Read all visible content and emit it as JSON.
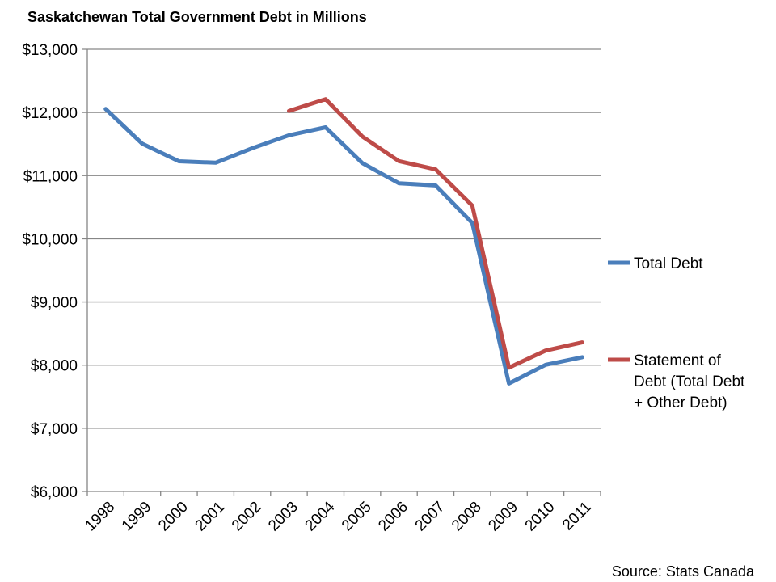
{
  "chart_data": {
    "type": "line",
    "title": "Saskatchewan Total Government Debt in Millions",
    "source": "Source: Stats Canada",
    "xlabel": "",
    "ylabel": "",
    "ylim": [
      6000,
      13000
    ],
    "y_ticks": [
      6000,
      7000,
      8000,
      9000,
      10000,
      11000,
      12000,
      13000
    ],
    "y_tick_labels": [
      "$6,000",
      "$7,000",
      "$8,000",
      "$9,000",
      "$10,000",
      "$11,000",
      "$12,000",
      "$13,000"
    ],
    "categories": [
      "1998",
      "1999",
      "2000",
      "2001",
      "2002",
      "2003",
      "2004",
      "2005",
      "2006",
      "2007",
      "2008",
      "2009",
      "2010",
      "2011"
    ],
    "grid": "horizontal",
    "legend_position": "right",
    "series": [
      {
        "name": "Total Debt",
        "legend_lines": [
          "Total Debt"
        ],
        "color": "#4a7ebb",
        "values": [
          12055,
          11505,
          11227,
          11205,
          11435,
          11640,
          11765,
          11200,
          10880,
          10845,
          10250,
          7710,
          8005,
          8125
        ]
      },
      {
        "name": "Statement of Debt (Total Debt + Other Debt)",
        "legend_lines": [
          "Statement of",
          "Debt (Total Debt",
          "+ Other Debt)"
        ],
        "color": "#be4b48",
        "values": [
          null,
          null,
          null,
          null,
          null,
          12025,
          12210,
          11620,
          11230,
          11100,
          10525,
          7960,
          8230,
          8360
        ]
      }
    ]
  }
}
